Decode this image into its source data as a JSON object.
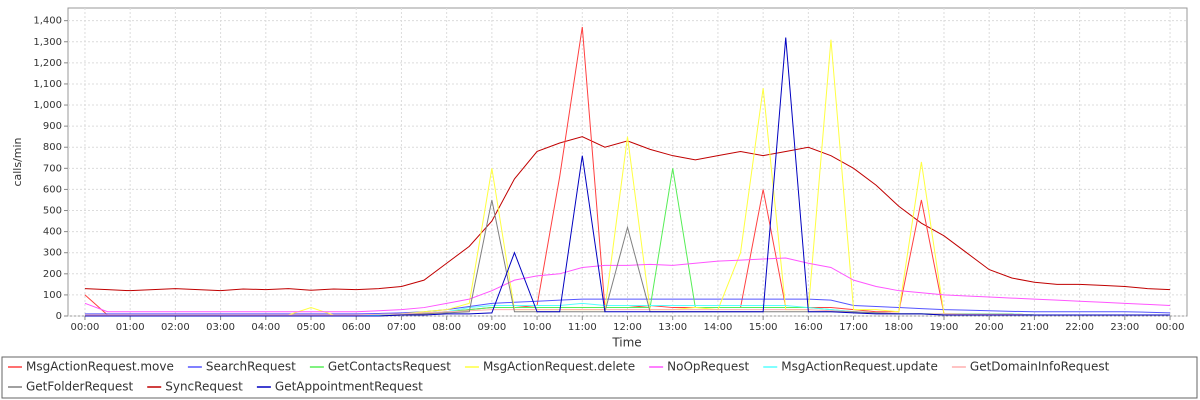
{
  "chart_data": {
    "type": "line",
    "y_label": "calls/min",
    "x_label": "Time",
    "x": [
      0,
      0.5,
      1,
      1.5,
      2,
      2.5,
      3,
      3.5,
      4,
      4.5,
      5,
      5.5,
      6,
      6.5,
      7,
      7.5,
      8,
      8.5,
      9,
      9.5,
      10,
      10.5,
      11,
      11.5,
      12,
      12.5,
      13,
      13.5,
      14,
      14.5,
      15,
      15.5,
      16,
      16.5,
      17,
      17.5,
      18,
      18.5,
      19,
      19.5,
      20,
      20.5,
      21,
      21.5,
      22,
      22.5,
      23,
      23.5,
      24
    ],
    "xlim": [
      -0.375,
      24.375
    ],
    "xticks": [
      {
        "value": 0,
        "label": "00:00"
      },
      {
        "value": 1,
        "label": "01:00"
      },
      {
        "value": 2,
        "label": "02:00"
      },
      {
        "value": 3,
        "label": "03:00"
      },
      {
        "value": 4,
        "label": "04:00"
      },
      {
        "value": 5,
        "label": "05:00"
      },
      {
        "value": 6,
        "label": "06:00"
      },
      {
        "value": 7,
        "label": "07:00"
      },
      {
        "value": 8,
        "label": "08:00"
      },
      {
        "value": 9,
        "label": "09:00"
      },
      {
        "value": 10,
        "label": "10:00"
      },
      {
        "value": 11,
        "label": "11:00"
      },
      {
        "value": 12,
        "label": "12:00"
      },
      {
        "value": 13,
        "label": "13:00"
      },
      {
        "value": 14,
        "label": "14:00"
      },
      {
        "value": 15,
        "label": "15:00"
      },
      {
        "value": 16,
        "label": "16:00"
      },
      {
        "value": 17,
        "label": "17:00"
      },
      {
        "value": 18,
        "label": "18:00"
      },
      {
        "value": 19,
        "label": "19:00"
      },
      {
        "value": 20,
        "label": "20:00"
      },
      {
        "value": 21,
        "label": "21:00"
      },
      {
        "value": 22,
        "label": "22:00"
      },
      {
        "value": 23,
        "label": "23:00"
      },
      {
        "value": 24,
        "label": "00:00"
      }
    ],
    "ylim": [
      0,
      1460
    ],
    "yticks": [
      0,
      100,
      200,
      300,
      400,
      500,
      600,
      700,
      800,
      900,
      {
        "value": 1000,
        "label": "1,000"
      },
      {
        "value": 1100,
        "label": "1,100"
      },
      {
        "value": 1200,
        "label": "1,200"
      },
      {
        "value": 1300,
        "label": "1,300"
      },
      {
        "value": 1400,
        "label": "1,400"
      }
    ],
    "grid": true,
    "series": [
      {
        "name": "MsgActionRequest.move",
        "color": "#ff4040",
        "values": [
          100,
          5,
          5,
          5,
          5,
          5,
          5,
          5,
          5,
          5,
          5,
          5,
          5,
          5,
          10,
          10,
          20,
          30,
          40,
          40,
          50,
          660,
          1370,
          40,
          40,
          50,
          40,
          40,
          40,
          40,
          600,
          40,
          40,
          40,
          30,
          20,
          20,
          550,
          10,
          10,
          10,
          10,
          5,
          5,
          5,
          5,
          5,
          5,
          5
        ]
      },
      {
        "name": "SearchRequest",
        "color": "#5555ff",
        "values": [
          10,
          10,
          10,
          10,
          10,
          10,
          10,
          10,
          10,
          10,
          10,
          10,
          10,
          12,
          15,
          20,
          30,
          45,
          60,
          65,
          70,
          75,
          80,
          80,
          80,
          80,
          80,
          80,
          80,
          80,
          80,
          80,
          80,
          75,
          50,
          45,
          40,
          35,
          30,
          28,
          25,
          22,
          20,
          20,
          20,
          20,
          20,
          18,
          15
        ]
      },
      {
        "name": "GetContactsRequest",
        "color": "#55ee55",
        "values": [
          5,
          5,
          5,
          5,
          5,
          5,
          5,
          5,
          5,
          5,
          5,
          5,
          5,
          5,
          10,
          15,
          20,
          30,
          40,
          40,
          40,
          40,
          40,
          40,
          40,
          40,
          700,
          40,
          40,
          40,
          40,
          40,
          40,
          30,
          20,
          15,
          10,
          10,
          10,
          10,
          10,
          10,
          5,
          5,
          5,
          5,
          5,
          5,
          5
        ]
      },
      {
        "name": "MsgActionRequest.delete",
        "color": "#ffff40",
        "values": [
          5,
          5,
          5,
          5,
          5,
          5,
          5,
          5,
          5,
          5,
          40,
          5,
          5,
          5,
          10,
          20,
          30,
          60,
          700,
          30,
          30,
          30,
          30,
          30,
          850,
          30,
          30,
          40,
          30,
          300,
          1080,
          30,
          30,
          1310,
          30,
          30,
          20,
          730,
          10,
          10,
          10,
          10,
          5,
          5,
          5,
          5,
          5,
          5,
          5
        ]
      },
      {
        "name": "NoOpRequest",
        "color": "#ff55ff",
        "values": [
          60,
          20,
          20,
          20,
          20,
          20,
          20,
          20,
          20,
          20,
          20,
          20,
          20,
          25,
          30,
          40,
          60,
          80,
          120,
          170,
          190,
          200,
          230,
          240,
          240,
          245,
          240,
          250,
          260,
          265,
          270,
          275,
          250,
          230,
          170,
          140,
          120,
          110,
          100,
          95,
          90,
          85,
          80,
          75,
          70,
          65,
          60,
          55,
          50
        ]
      },
      {
        "name": "MsgActionRequest.update",
        "color": "#55ffff",
        "values": [
          5,
          5,
          5,
          5,
          5,
          5,
          5,
          5,
          5,
          5,
          5,
          5,
          5,
          5,
          10,
          15,
          20,
          40,
          50,
          50,
          50,
          50,
          60,
          50,
          50,
          50,
          50,
          50,
          50,
          50,
          50,
          50,
          40,
          30,
          20,
          15,
          10,
          10,
          10,
          10,
          10,
          10,
          5,
          5,
          5,
          5,
          5,
          5,
          5
        ]
      },
      {
        "name": "GetDomainInfoRequest",
        "color": "#ffafaf",
        "values": [
          5,
          5,
          5,
          5,
          5,
          5,
          5,
          5,
          5,
          5,
          5,
          5,
          5,
          8,
          10,
          15,
          20,
          25,
          30,
          30,
          30,
          30,
          30,
          30,
          30,
          30,
          30,
          30,
          30,
          30,
          30,
          30,
          30,
          25,
          20,
          15,
          10,
          10,
          10,
          8,
          8,
          8,
          5,
          5,
          5,
          5,
          5,
          5,
          5
        ]
      },
      {
        "name": "GetFolderRequest",
        "color": "#808080",
        "values": [
          0,
          0,
          0,
          0,
          0,
          0,
          0,
          0,
          0,
          0,
          0,
          0,
          0,
          0,
          5,
          10,
          15,
          20,
          550,
          20,
          20,
          20,
          20,
          20,
          420,
          20,
          20,
          20,
          20,
          20,
          20,
          20,
          20,
          20,
          20,
          15,
          10,
          10,
          5,
          5,
          5,
          5,
          5,
          5,
          5,
          5,
          5,
          5,
          5
        ]
      },
      {
        "name": "SyncRequest",
        "color": "#c00000",
        "values": [
          130,
          125,
          120,
          125,
          130,
          125,
          120,
          128,
          125,
          130,
          122,
          128,
          125,
          130,
          140,
          170,
          250,
          330,
          450,
          650,
          780,
          820,
          850,
          800,
          830,
          790,
          760,
          740,
          760,
          780,
          760,
          780,
          800,
          760,
          700,
          620,
          520,
          440,
          380,
          300,
          220,
          180,
          160,
          150,
          150,
          145,
          140,
          130,
          125
        ]
      },
      {
        "name": "GetAppointmentRequest",
        "color": "#0000c0",
        "values": [
          0,
          0,
          0,
          0,
          0,
          0,
          0,
          0,
          0,
          0,
          0,
          0,
          0,
          0,
          5,
          5,
          10,
          10,
          15,
          300,
          20,
          20,
          760,
          20,
          20,
          20,
          20,
          20,
          20,
          20,
          20,
          1320,
          20,
          20,
          15,
          10,
          10,
          10,
          5,
          5,
          5,
          5,
          5,
          5,
          5,
          5,
          5,
          5,
          5
        ]
      }
    ]
  }
}
